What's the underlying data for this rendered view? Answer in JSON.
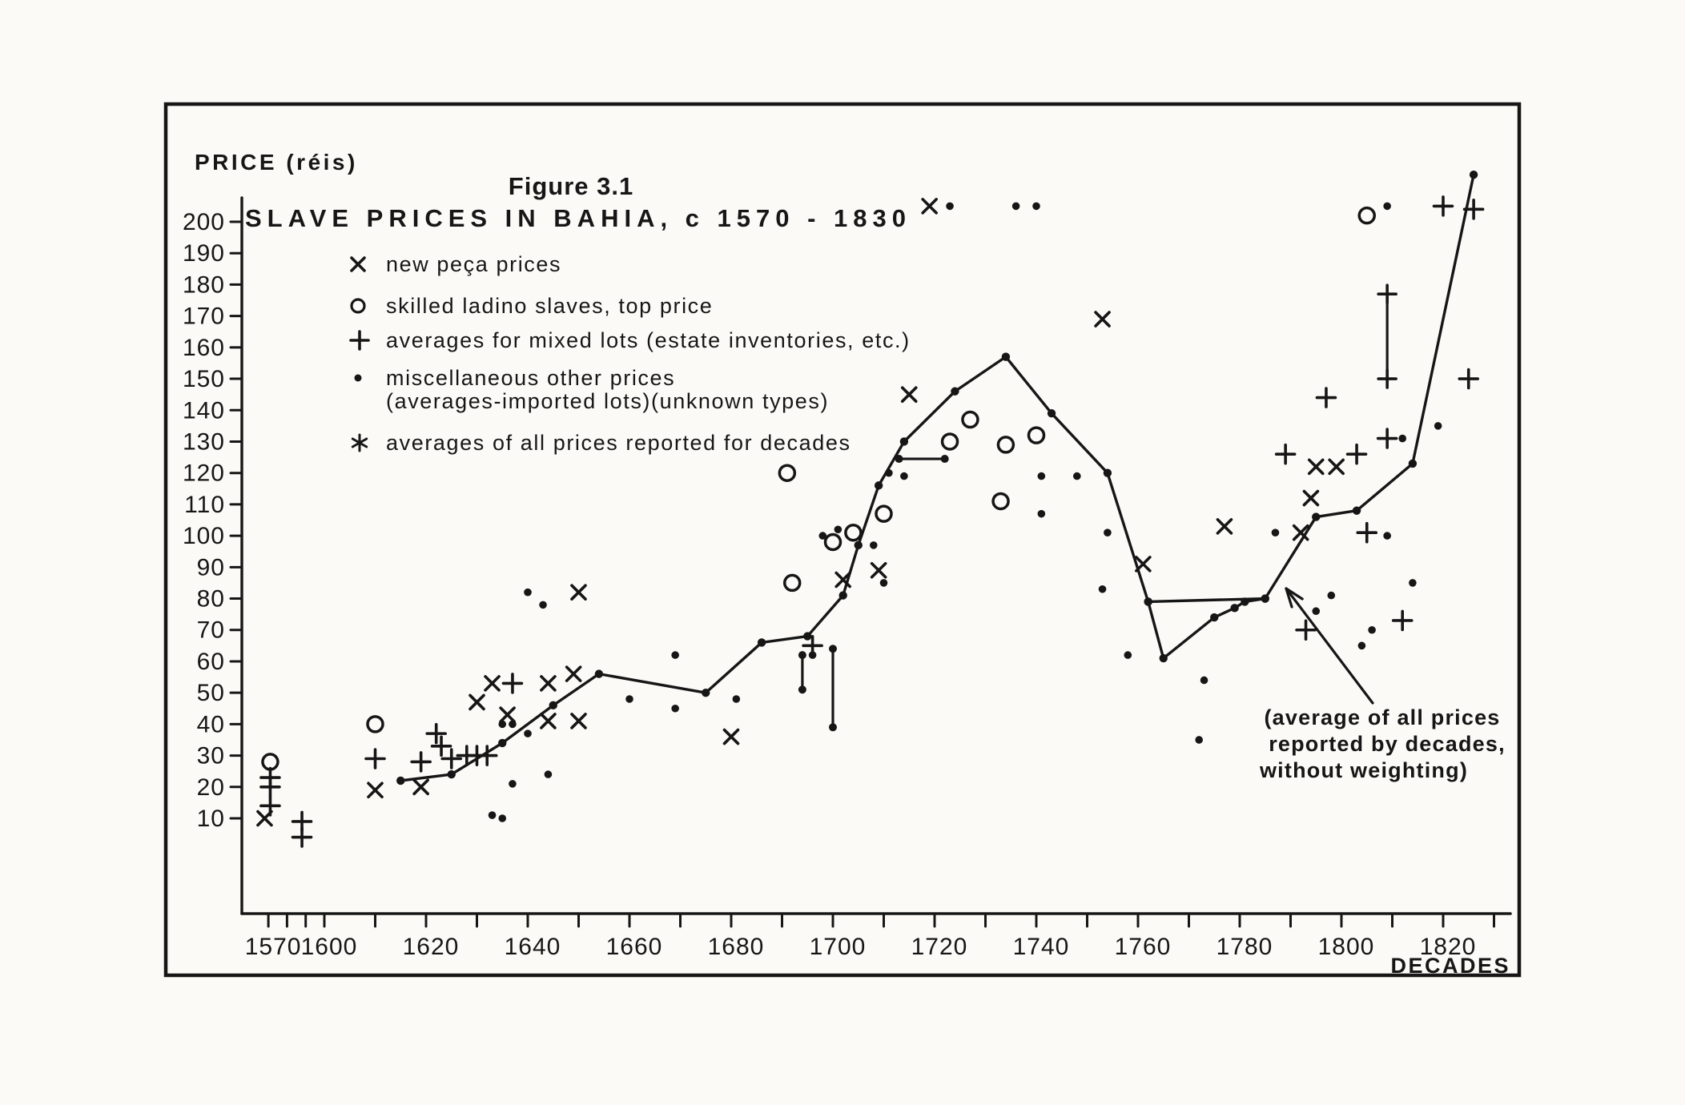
{
  "figure": {
    "label": "Figure 3.1",
    "title": "SLAVE PRICES IN BAHIA, c  1570 - 1830",
    "y_axis_title": "PRICE (réis)",
    "x_axis_title": "DECADES"
  },
  "legend": [
    {
      "marker": "x",
      "label": "new peça prices"
    },
    {
      "marker": "o",
      "label": "skilled ladino slaves, top price"
    },
    {
      "marker": "plus",
      "label": "averages for mixed lots (estate inventories, etc.)"
    },
    {
      "marker": "dot",
      "label": "miscellaneous other prices",
      "label2": "(averages-imported lots)(unknown types)"
    },
    {
      "marker": "asterisk",
      "label": "averages of all prices reported for decades"
    }
  ],
  "annotation": {
    "lines": [
      "(average of all prices",
      "reported by decades,",
      "without weighting)"
    ]
  },
  "chart_data": {
    "type": "scatter",
    "title": "SLAVE PRICES IN BAHIA, c 1570-1830",
    "xlabel": "DECADES",
    "ylabel": "PRICE (réis)",
    "xlim": [
      1560,
      1835
    ],
    "ylim": [
      0,
      220
    ],
    "grid": false,
    "x_ticks": [
      1570,
      1580,
      1590,
      1600,
      1610,
      1620,
      1630,
      1640,
      1650,
      1660,
      1670,
      1680,
      1690,
      1700,
      1710,
      1720,
      1730,
      1740,
      1750,
      1760,
      1770,
      1780,
      1790,
      1800,
      1810,
      1820,
      1830
    ],
    "x_ticks_labeled": [
      1570,
      1600,
      1620,
      1640,
      1660,
      1680,
      1700,
      1720,
      1740,
      1760,
      1780,
      1800,
      1820
    ],
    "y_ticks": [
      10,
      20,
      30,
      40,
      50,
      60,
      70,
      80,
      90,
      100,
      110,
      120,
      130,
      140,
      150,
      160,
      170,
      180,
      190,
      200
    ],
    "series": [
      {
        "name": "new peça prices",
        "marker": "x",
        "points": [
          [
            1568,
            10
          ],
          [
            1610,
            19
          ],
          [
            1619,
            20
          ],
          [
            1630,
            47
          ],
          [
            1633,
            53
          ],
          [
            1636,
            43
          ],
          [
            1644,
            53
          ],
          [
            1644,
            41
          ],
          [
            1649,
            56
          ],
          [
            1650,
            41
          ],
          [
            1650,
            82
          ],
          [
            1680,
            36
          ],
          [
            1702,
            86
          ],
          [
            1709,
            89
          ],
          [
            1715,
            145
          ],
          [
            1719,
            205
          ],
          [
            1753,
            169
          ],
          [
            1761,
            91
          ],
          [
            1777,
            103
          ],
          [
            1792,
            101
          ],
          [
            1794,
            112
          ],
          [
            1795,
            122
          ],
          [
            1799,
            122
          ]
        ]
      },
      {
        "name": "skilled ladino slaves, top price",
        "marker": "o",
        "points": [
          [
            1571,
            28
          ],
          [
            1610,
            40
          ],
          [
            1691,
            120
          ],
          [
            1692,
            85
          ],
          [
            1700,
            98
          ],
          [
            1704,
            101
          ],
          [
            1710,
            107
          ],
          [
            1723,
            130
          ],
          [
            1727,
            137
          ],
          [
            1733,
            111
          ],
          [
            1734,
            129
          ],
          [
            1740,
            132
          ],
          [
            1805,
            202
          ]
        ]
      },
      {
        "name": "averages for mixed lots (estate inventories, etc.)",
        "marker": "plus",
        "points": [
          [
            1571,
            23
          ],
          [
            1571,
            20
          ],
          [
            1571,
            14
          ],
          [
            1588,
            9
          ],
          [
            1588,
            4
          ],
          [
            1610,
            29
          ],
          [
            1619,
            28
          ],
          [
            1622,
            37
          ],
          [
            1623,
            33
          ],
          [
            1625,
            29
          ],
          [
            1628,
            30
          ],
          [
            1630,
            30
          ],
          [
            1632,
            30
          ],
          [
            1637,
            53
          ],
          [
            1696,
            65
          ],
          [
            1789,
            126
          ],
          [
            1793,
            70
          ],
          [
            1797,
            144
          ],
          [
            1803,
            126
          ],
          [
            1805,
            101
          ],
          [
            1809,
            131
          ],
          [
            1812,
            73
          ],
          [
            1820,
            205
          ],
          [
            1825,
            150
          ],
          [
            1826,
            204
          ]
        ]
      },
      {
        "name": "miscellaneous other prices (averages-imported lots)(unknown types)",
        "marker": "dot",
        "points": [
          [
            1633,
            11
          ],
          [
            1635,
            10
          ],
          [
            1637,
            21
          ],
          [
            1635,
            40
          ],
          [
            1637,
            40
          ],
          [
            1640,
            37
          ],
          [
            1644,
            24
          ],
          [
            1640,
            82
          ],
          [
            1643,
            78
          ],
          [
            1660,
            48
          ],
          [
            1669,
            62
          ],
          [
            1669,
            45
          ],
          [
            1681,
            48
          ],
          [
            1696,
            62
          ],
          [
            1698,
            100
          ],
          [
            1701,
            102
          ],
          [
            1708,
            97
          ],
          [
            1710,
            85
          ],
          [
            1711,
            120
          ],
          [
            1714,
            119
          ],
          [
            1723,
            205
          ],
          [
            1736,
            205
          ],
          [
            1740,
            205
          ],
          [
            1741,
            119
          ],
          [
            1741,
            107
          ],
          [
            1748,
            119
          ],
          [
            1753,
            83
          ],
          [
            1754,
            101
          ],
          [
            1758,
            62
          ],
          [
            1772,
            35
          ],
          [
            1773,
            54
          ],
          [
            1787,
            101
          ],
          [
            1795,
            76
          ],
          [
            1798,
            81
          ],
          [
            1804,
            65
          ],
          [
            1806,
            70
          ],
          [
            1809,
            100
          ],
          [
            1809,
            205
          ],
          [
            1812,
            131
          ],
          [
            1814,
            85
          ],
          [
            1819,
            135
          ]
        ]
      }
    ],
    "average_line": {
      "name": "averages of all prices reported for decades",
      "points": [
        [
          1615,
          22
        ],
        [
          1625,
          24
        ],
        [
          1635,
          34
        ],
        [
          1645,
          46
        ],
        [
          1654,
          56
        ],
        [
          1675,
          50
        ],
        [
          1686,
          66
        ],
        [
          1695,
          68
        ],
        [
          1702,
          81
        ],
        [
          1705,
          97
        ],
        [
          1709,
          116
        ],
        [
          1714,
          130
        ],
        [
          1724,
          146
        ],
        [
          1734,
          157
        ],
        [
          1743,
          139
        ],
        [
          1754,
          120
        ],
        [
          1762,
          79
        ],
        [
          1785,
          80
        ],
        [
          1795,
          106
        ],
        [
          1803,
          108
        ],
        [
          1814,
          123
        ],
        [
          1826,
          215
        ]
      ],
      "dip_branch": [
        [
          1762,
          79
        ],
        [
          1765,
          61
        ],
        [
          1775,
          74
        ],
        [
          1779,
          77
        ],
        [
          1781,
          79
        ],
        [
          1785,
          80
        ]
      ]
    },
    "range_bars": [
      {
        "x": 1694,
        "top": 62,
        "bottom": 51,
        "ends": "dot"
      },
      {
        "x": 1700,
        "top": 64,
        "bottom": 39,
        "ends": "dot"
      },
      {
        "x": 1809,
        "top": 177,
        "bottom": 150,
        "ends": "plus"
      }
    ],
    "span_bars": [
      {
        "y": 124.5,
        "from": 1713,
        "to": 1722,
        "ends": "dot"
      }
    ],
    "ink_color": "#161616",
    "paper_color": "#fbfaf7"
  }
}
